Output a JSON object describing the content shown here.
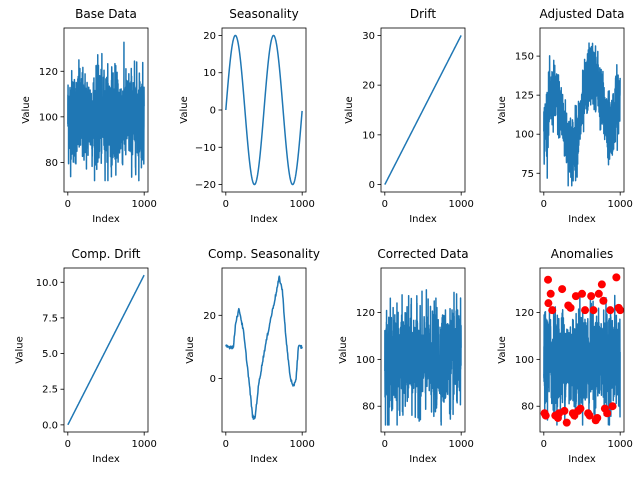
{
  "chart_data": [
    {
      "type": "line",
      "title": "Base Data",
      "xlabel": "Index",
      "ylabel": "Value",
      "xlim": [
        -50,
        1050
      ],
      "ylim": [
        67,
        139
      ],
      "xticks": [
        0,
        1000
      ],
      "yticks": [
        80,
        100,
        120
      ],
      "color": "#1f77b4",
      "series": [
        {
          "kind": "noise",
          "mean": 100,
          "sd": 10,
          "min": 72,
          "max": 135,
          "n": 1000
        }
      ]
    },
    {
      "type": "line",
      "title": "Seasonality",
      "xlabel": "Index",
      "ylabel": "Value",
      "xlim": [
        -50,
        1050
      ],
      "ylim": [
        -22,
        22
      ],
      "xticks": [
        0,
        1000
      ],
      "yticks": [
        -20,
        -10,
        0,
        10,
        20
      ],
      "color": "#1f77b4",
      "series": [
        {
          "kind": "sine",
          "amplitude": 20,
          "period": 500,
          "offset": 0,
          "n": 1000
        }
      ]
    },
    {
      "type": "line",
      "title": "Drift",
      "xlabel": "Index",
      "ylabel": "Value",
      "xlim": [
        -50,
        1050
      ],
      "ylim": [
        -1.5,
        31.5
      ],
      "xticks": [
        0,
        1000
      ],
      "yticks": [
        0,
        10,
        20,
        30
      ],
      "color": "#1f77b4",
      "series": [
        {
          "kind": "linear",
          "from": 0,
          "to": 30,
          "n": 1000
        }
      ]
    },
    {
      "type": "line",
      "title": "Adjusted Data",
      "xlabel": "Index",
      "ylabel": "Value",
      "xlim": [
        -50,
        1050
      ],
      "ylim": [
        63,
        168
      ],
      "xticks": [
        0,
        1000
      ],
      "yticks": [
        75,
        100,
        125,
        150
      ],
      "color": "#1f77b4",
      "series": [
        {
          "kind": "sum",
          "mean": 100,
          "sd": 10,
          "amplitude": 20,
          "period": 500,
          "drift": 30,
          "min": 67,
          "max": 165,
          "n": 1000
        }
      ]
    },
    {
      "type": "line",
      "title": "Comp. Drift",
      "xlabel": "Index",
      "ylabel": "Value",
      "xlim": [
        -50,
        1050
      ],
      "ylim": [
        -0.5,
        11
      ],
      "xticks": [
        0,
        1000
      ],
      "yticks": [
        0.0,
        2.5,
        5.0,
        7.5,
        10.0
      ],
      "ytick_format": "fixed1",
      "color": "#1f77b4",
      "series": [
        {
          "kind": "linear",
          "from": 0,
          "to": 10.5,
          "n": 1000
        }
      ]
    },
    {
      "type": "line",
      "title": "Comp. Seasonality",
      "xlabel": "Index",
      "ylabel": "Value",
      "xlim": [
        -50,
        1050
      ],
      "ylim": [
        -17,
        35
      ],
      "xticks": [
        0,
        1000
      ],
      "yticks": [
        0,
        20
      ],
      "color": "#1f77b4",
      "series": [
        {
          "kind": "shape",
          "points": [
            [
              0,
              10
            ],
            [
              100,
              10
            ],
            [
              130,
              18
            ],
            [
              175,
              22
            ],
            [
              230,
              15
            ],
            [
              300,
              0
            ],
            [
              350,
              -12
            ],
            [
              380,
              -13
            ],
            [
              430,
              -2
            ],
            [
              500,
              8
            ],
            [
              580,
              18
            ],
            [
              650,
              26
            ],
            [
              700,
              32
            ],
            [
              740,
              28
            ],
            [
              790,
              12
            ],
            [
              840,
              1
            ],
            [
              880,
              -3
            ],
            [
              920,
              0
            ],
            [
              950,
              10
            ],
            [
              1000,
              10
            ]
          ]
        }
      ]
    },
    {
      "type": "line",
      "title": "Corrected Data",
      "xlabel": "Index",
      "ylabel": "Value",
      "xlim": [
        -50,
        1050
      ],
      "ylim": [
        69,
        139
      ],
      "xticks": [
        0,
        1000
      ],
      "yticks": [
        80,
        100,
        120
      ],
      "color": "#1f77b4",
      "series": [
        {
          "kind": "noise",
          "mean": 100,
          "sd": 10,
          "min": 72,
          "max": 135,
          "n": 1000
        }
      ]
    },
    {
      "type": "line",
      "title": "Anomalies",
      "xlabel": "Index",
      "ylabel": "Value",
      "xlim": [
        -50,
        1050
      ],
      "ylim": [
        69,
        139
      ],
      "xticks": [
        0,
        1000
      ],
      "yticks": [
        80,
        100,
        120
      ],
      "color": "#1f77b4",
      "series": [
        {
          "kind": "noise",
          "mean": 100,
          "sd": 10,
          "min": 72,
          "max": 135,
          "n": 1000
        }
      ],
      "anomalies": {
        "color": "#ff0000",
        "points": [
          [
            10,
            77
          ],
          [
            25,
            76
          ],
          [
            55,
            134
          ],
          [
            60,
            124
          ],
          [
            90,
            128
          ],
          [
            110,
            121
          ],
          [
            150,
            76
          ],
          [
            185,
            75
          ],
          [
            200,
            77
          ],
          [
            240,
            130
          ],
          [
            270,
            78
          ],
          [
            300,
            73
          ],
          [
            320,
            123
          ],
          [
            350,
            122
          ],
          [
            380,
            77
          ],
          [
            400,
            76
          ],
          [
            420,
            127
          ],
          [
            450,
            78
          ],
          [
            480,
            79
          ],
          [
            500,
            128
          ],
          [
            540,
            121
          ],
          [
            580,
            77
          ],
          [
            600,
            76
          ],
          [
            620,
            127
          ],
          [
            650,
            121
          ],
          [
            680,
            74
          ],
          [
            700,
            75
          ],
          [
            720,
            128
          ],
          [
            760,
            132
          ],
          [
            780,
            125
          ],
          [
            800,
            79
          ],
          [
            830,
            77
          ],
          [
            870,
            121
          ],
          [
            900,
            80
          ],
          [
            950,
            135
          ],
          [
            980,
            122
          ],
          [
            1000,
            121
          ]
        ]
      }
    }
  ]
}
